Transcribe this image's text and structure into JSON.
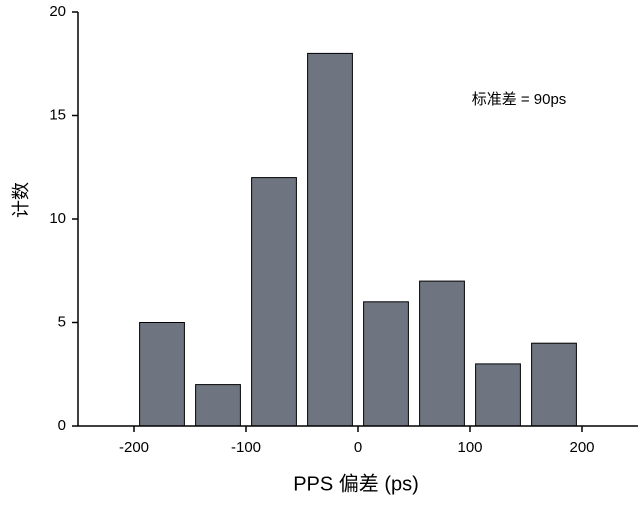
{
  "chart_data": {
    "type": "histogram",
    "x_label": "PPS 偏差 (ps)",
    "y_label": "计数",
    "annotation": "标准差 = 90ps",
    "bins": [
      -200,
      -150,
      -100,
      -50,
      0,
      50,
      100,
      150,
      200
    ],
    "values": [
      5,
      2,
      12,
      18,
      6,
      7,
      3,
      4
    ],
    "color": "#6e7580",
    "xlim": [
      -250,
      250
    ],
    "xticks": [
      -200,
      -100,
      0,
      100,
      200
    ],
    "ylim": [
      0,
      20
    ],
    "yticks": [
      0,
      5,
      10,
      15,
      20
    ]
  }
}
